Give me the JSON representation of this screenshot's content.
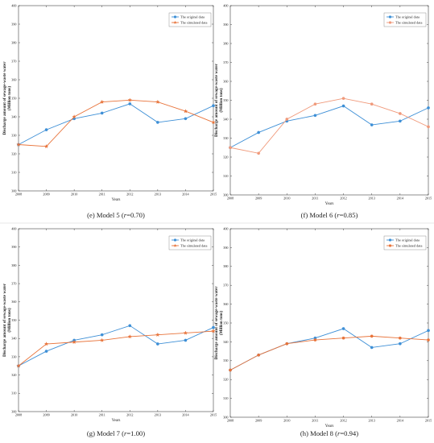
{
  "chart_data": [
    {
      "type": "line",
      "caption_prefix": "(e) Model 5 (",
      "caption_var": "r",
      "caption_suffix": "=0.70)",
      "xlabel": "Years",
      "ylabel_lines": [
        "Discharge amount of sewage-waste water",
        "(Million tons)"
      ],
      "x": [
        2008,
        2009,
        2010,
        2011,
        2012,
        2013,
        2014,
        2015
      ],
      "ylim": [
        300,
        400
      ],
      "yticks": [
        300,
        310,
        320,
        330,
        340,
        350,
        360,
        370,
        380,
        390,
        400
      ],
      "legend_position": "top-right",
      "series": [
        {
          "name": "The original data",
          "color": "#3d8fd6",
          "marker": "circle",
          "values": [
            325,
            333,
            339,
            342,
            347,
            337,
            339,
            346
          ]
        },
        {
          "name": "The simulated data",
          "color": "#e8733a",
          "marker": "star",
          "values": [
            325,
            324,
            340,
            348,
            349,
            348,
            343,
            337
          ]
        }
      ]
    },
    {
      "type": "line",
      "caption_prefix": "(f) Model 6 (",
      "caption_var": "r",
      "caption_suffix": "=0.85)",
      "xlabel": "Years",
      "ylabel_lines": [
        "Discharge amount of sewage-waste water",
        "(Million tons)"
      ],
      "x": [
        2008,
        2009,
        2010,
        2011,
        2012,
        2013,
        2014,
        2015
      ],
      "ylim": [
        300,
        400
      ],
      "yticks": [
        300,
        310,
        320,
        330,
        340,
        350,
        360,
        370,
        380,
        390,
        400
      ],
      "legend_position": "top-right",
      "series": [
        {
          "name": "The original data",
          "color": "#3d8fd6",
          "marker": "circle",
          "values": [
            325,
            333,
            339,
            342,
            347,
            337,
            339,
            346
          ]
        },
        {
          "name": "The simulated data",
          "color": "#f0997a",
          "marker": "circle",
          "values": [
            325,
            322,
            340,
            348,
            351,
            348,
            343,
            336
          ]
        }
      ]
    },
    {
      "type": "line",
      "caption_prefix": "(g) Model 7 (",
      "caption_var": "r",
      "caption_suffix": "=1.00)",
      "xlabel": "Years",
      "ylabel_lines": [
        "Discharge amount of sewage-waste water",
        "(Million tons)"
      ],
      "x": [
        2008,
        2009,
        2010,
        2011,
        2012,
        2013,
        2014,
        2015
      ],
      "ylim": [
        300,
        400
      ],
      "yticks": [
        300,
        310,
        320,
        330,
        340,
        350,
        360,
        370,
        380,
        390,
        400
      ],
      "legend_position": "top-right",
      "series": [
        {
          "name": "The original data",
          "color": "#3d8fd6",
          "marker": "circle",
          "values": [
            325,
            333,
            339,
            342,
            347,
            337,
            339,
            346
          ]
        },
        {
          "name": "The simulated data",
          "color": "#e8733a",
          "marker": "star",
          "values": [
            325,
            337,
            338,
            339,
            341,
            342,
            343,
            344
          ]
        }
      ]
    },
    {
      "type": "line",
      "caption_prefix": "(h) Model 8 (",
      "caption_var": "r",
      "caption_suffix": "=0.94)",
      "xlabel": "Years",
      "ylabel_lines": [
        "Discharge amount of sewage-waste water",
        "(Million tons)"
      ],
      "x": [
        2008,
        2009,
        2010,
        2011,
        2012,
        2013,
        2014,
        2015
      ],
      "ylim": [
        300,
        400
      ],
      "yticks": [
        300,
        310,
        320,
        330,
        340,
        350,
        360,
        370,
        380,
        390,
        400
      ],
      "legend_position": "top-right",
      "series": [
        {
          "name": "The original data",
          "color": "#3d8fd6",
          "marker": "circle",
          "values": [
            325,
            333,
            339,
            342,
            347,
            337,
            339,
            346
          ]
        },
        {
          "name": "The simulated data",
          "color": "#e8733a",
          "marker": "circle",
          "values": [
            325,
            333,
            339,
            341,
            342,
            343,
            342,
            341
          ]
        }
      ]
    }
  ]
}
